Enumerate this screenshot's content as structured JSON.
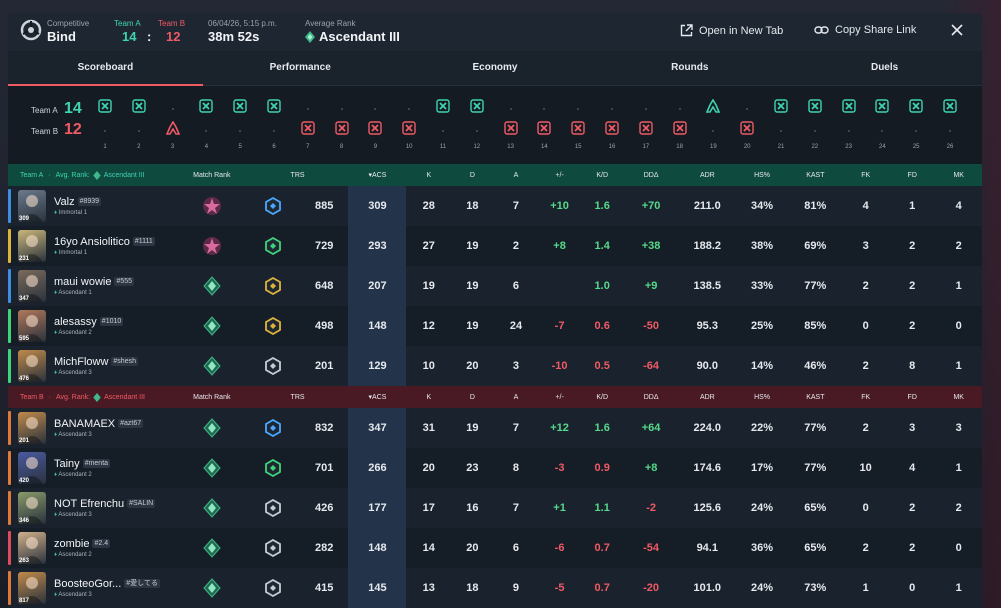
{
  "header": {
    "mode_label": "Competitive",
    "map": "Bind",
    "team_a_label": "Team A",
    "team_b_label": "Team B",
    "team_a_score": "14",
    "score_sep": ":",
    "team_b_score": "12",
    "date": "06/04/26, 5:15 p.m.",
    "duration": "38m 52s",
    "avg_rank_label": "Average Rank",
    "avg_rank": "Ascendant III",
    "open_tab": "Open in New Tab",
    "copy_link": "Copy Share Link"
  },
  "tabs": [
    "Scoreboard",
    "Performance",
    "Economy",
    "Rounds",
    "Duels"
  ],
  "rounds": {
    "team_a_label": "Team A",
    "team_b_label": "Team B",
    "team_a_score": "14",
    "team_b_score": "12",
    "numbers": [
      "1",
      "2",
      "3",
      "4",
      "5",
      "6",
      "7",
      "8",
      "9",
      "10",
      "11",
      "12",
      "13",
      "14",
      "15",
      "16",
      "17",
      "18",
      "19",
      "20",
      "21",
      "22",
      "23",
      "24",
      "25",
      "26"
    ],
    "results": [
      {
        "winner": "A",
        "type": "elim"
      },
      {
        "winner": "A",
        "type": "elim"
      },
      {
        "winner": "B",
        "type": "defuse"
      },
      {
        "winner": "A",
        "type": "elim"
      },
      {
        "winner": "A",
        "type": "elim"
      },
      {
        "winner": "A",
        "type": "elim"
      },
      {
        "winner": "B",
        "type": "elim"
      },
      {
        "winner": "B",
        "type": "elim"
      },
      {
        "winner": "B",
        "type": "elim"
      },
      {
        "winner": "B",
        "type": "elim"
      },
      {
        "winner": "A",
        "type": "elim"
      },
      {
        "winner": "A",
        "type": "elim"
      },
      {
        "winner": "B",
        "type": "elim"
      },
      {
        "winner": "B",
        "type": "elim"
      },
      {
        "winner": "B",
        "type": "elim"
      },
      {
        "winner": "B",
        "type": "elim"
      },
      {
        "winner": "B",
        "type": "elim"
      },
      {
        "winner": "B",
        "type": "elim"
      },
      {
        "winner": "A",
        "type": "defuse"
      },
      {
        "winner": "B",
        "type": "elim"
      },
      {
        "winner": "A",
        "type": "elim"
      },
      {
        "winner": "A",
        "type": "elim"
      },
      {
        "winner": "A",
        "type": "elim"
      },
      {
        "winner": "A",
        "type": "elim"
      },
      {
        "winner": "A",
        "type": "elim"
      },
      {
        "winner": "A",
        "type": "elim"
      }
    ]
  },
  "columns": [
    "Match Rank",
    "TRS",
    "ACS",
    "K",
    "D",
    "A",
    "+/-",
    "K/D",
    "DDΔ",
    "ADR",
    "HS%",
    "KAST",
    "FK",
    "FD",
    "MK"
  ],
  "team_a": {
    "label": "Team A",
    "avg_rank_label": "Avg. Rank:",
    "avg_rank": "Ascendant III",
    "color": "#3fd4b0",
    "players": [
      {
        "name": "Valz",
        "tag": "#8939",
        "rank": "Immortal 1",
        "level": "309",
        "bar": "#3a8fe0",
        "agent": "#6b7a8c",
        "match_rank": "immortal",
        "trs_tier": "blue",
        "trs": "885",
        "acs": "309",
        "k": "28",
        "d": "18",
        "a": "7",
        "pm": "+10",
        "kd": "1.6",
        "dd": "+70",
        "adr": "211.0",
        "hs": "34%",
        "kast": "81%",
        "fk": "4",
        "fd": "1",
        "mk": "4"
      },
      {
        "name": "16yo Ansiolitico",
        "tag": "#1111",
        "rank": "Immortal 1",
        "level": "231",
        "bar": "#e0b43a",
        "agent": "#c9b77a",
        "match_rank": "immortal",
        "trs_tier": "green",
        "trs": "729",
        "acs": "293",
        "k": "27",
        "d": "19",
        "a": "2",
        "pm": "+8",
        "kd": "1.4",
        "dd": "+38",
        "adr": "188.2",
        "hs": "38%",
        "kast": "69%",
        "fk": "3",
        "fd": "2",
        "mk": "2"
      },
      {
        "name": "maui wowie",
        "tag": "#555",
        "rank": "Ascendant 1",
        "level": "347",
        "bar": "#3a8fe0",
        "agent": "#7a6a5a",
        "match_rank": "ascendant",
        "trs_tier": "gold",
        "trs": "648",
        "acs": "207",
        "k": "19",
        "d": "19",
        "a": "6",
        "pm": "",
        "kd": "1.0",
        "dd": "+9",
        "adr": "138.5",
        "hs": "33%",
        "kast": "77%",
        "fk": "2",
        "fd": "2",
        "mk": "1"
      },
      {
        "name": "alesassy",
        "tag": "#1010",
        "rank": "Ascendant 2",
        "level": "595",
        "bar": "#3fd47a",
        "agent": "#b0785a",
        "match_rank": "ascendant",
        "trs_tier": "gold",
        "trs": "498",
        "acs": "148",
        "k": "12",
        "d": "19",
        "a": "24",
        "pm": "-7",
        "kd": "0.6",
        "dd": "-50",
        "adr": "95.3",
        "hs": "25%",
        "kast": "85%",
        "fk": "0",
        "fd": "2",
        "mk": "0"
      },
      {
        "name": "MichFloww",
        "tag": "#shesh",
        "rank": "Ascendant 3",
        "level": "476",
        "bar": "#3fd47a",
        "agent": "#c08a4a",
        "match_rank": "ascendant",
        "trs_tier": "silver",
        "trs": "201",
        "acs": "129",
        "k": "10",
        "d": "20",
        "a": "3",
        "pm": "-10",
        "kd": "0.5",
        "dd": "-64",
        "adr": "90.0",
        "hs": "14%",
        "kast": "46%",
        "fk": "2",
        "fd": "8",
        "mk": "1"
      }
    ]
  },
  "team_b": {
    "label": "Team B",
    "avg_rank_label": "Avg. Rank:",
    "avg_rank": "Ascendant III",
    "color": "#ef5a64",
    "players": [
      {
        "name": "BANAMAEX",
        "tag": "#azt67",
        "rank": "Ascendant 3",
        "level": "201",
        "bar": "#e07a3a",
        "agent": "#c08a4a",
        "match_rank": "ascendant",
        "trs_tier": "blue",
        "trs": "832",
        "acs": "347",
        "k": "31",
        "d": "19",
        "a": "7",
        "pm": "+12",
        "kd": "1.6",
        "dd": "+64",
        "adr": "224.0",
        "hs": "22%",
        "kast": "77%",
        "fk": "2",
        "fd": "3",
        "mk": "3"
      },
      {
        "name": "Tainy",
        "tag": "#menta",
        "rank": "Ascendant 2",
        "level": "420",
        "bar": "#e07a3a",
        "agent": "#4a5aa0",
        "match_rank": "ascendant",
        "trs_tier": "green",
        "trs": "701",
        "acs": "266",
        "k": "20",
        "d": "23",
        "a": "8",
        "pm": "-3",
        "kd": "0.9",
        "dd": "+8",
        "adr": "174.6",
        "hs": "17%",
        "kast": "77%",
        "fk": "10",
        "fd": "4",
        "mk": "1"
      },
      {
        "name": "NOT Efrenchu",
        "tag": "#SALIN",
        "rank": "Ascendant 3",
        "level": "346",
        "bar": "#e07a3a",
        "agent": "#8a9a6a",
        "match_rank": "ascendant",
        "trs_tier": "silver",
        "trs": "426",
        "acs": "177",
        "k": "17",
        "d": "16",
        "a": "7",
        "pm": "+1",
        "kd": "1.1",
        "dd": "-2",
        "adr": "125.6",
        "hs": "24%",
        "kast": "65%",
        "fk": "0",
        "fd": "2",
        "mk": "2"
      },
      {
        "name": "zombie",
        "tag": "#2.4",
        "rank": "Ascendant 2",
        "level": "263",
        "bar": "#e04a5a",
        "agent": "#d0b08a",
        "match_rank": "ascendant",
        "trs_tier": "silver",
        "trs": "282",
        "acs": "148",
        "k": "14",
        "d": "20",
        "a": "6",
        "pm": "-6",
        "kd": "0.7",
        "dd": "-54",
        "adr": "94.1",
        "hs": "36%",
        "kast": "65%",
        "fk": "2",
        "fd": "2",
        "mk": "0"
      },
      {
        "name": "BoosteoGor...",
        "tag": "#愛してる",
        "rank": "Ascendant 3",
        "level": "817",
        "bar": "#e07a3a",
        "agent": "#c08a4a",
        "match_rank": "ascendant",
        "trs_tier": "silver",
        "trs": "415",
        "acs": "145",
        "k": "13",
        "d": "18",
        "a": "9",
        "pm": "-5",
        "kd": "0.7",
        "dd": "-20",
        "adr": "101.0",
        "hs": "24%",
        "kast": "73%",
        "fk": "1",
        "fd": "0",
        "mk": "1"
      }
    ]
  },
  "colors": {
    "accent_red": "#ef5a64",
    "team_a": "#3fd4b0",
    "positive": "#56d98a",
    "negative": "#ef5a64"
  }
}
